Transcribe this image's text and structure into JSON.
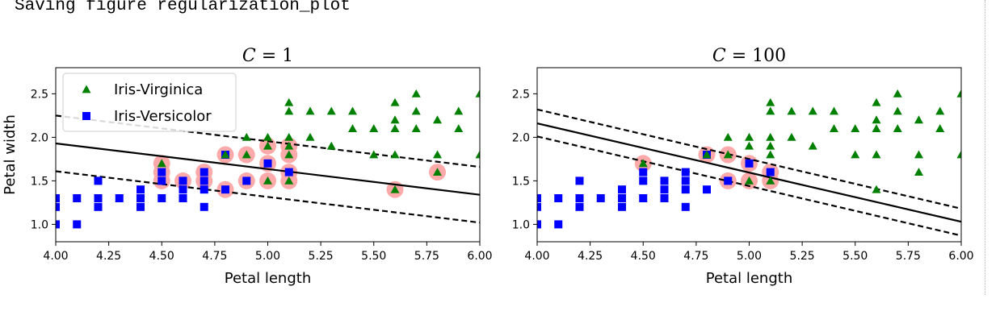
{
  "console": {
    "text": "Saving figure regularization_plot"
  },
  "chart_data": [
    {
      "type": "scatter",
      "title": "C = 1",
      "title_italic": "C",
      "title_rest": " = 1",
      "xlabel": "Petal length",
      "ylabel": "Petal width",
      "xlim": [
        4.0,
        6.0
      ],
      "ylim": [
        0.8,
        2.8
      ],
      "xticks": [
        "4.00",
        "4.25",
        "4.50",
        "4.75",
        "5.00",
        "5.25",
        "5.50",
        "5.75",
        "6.00"
      ],
      "yticks": [
        "1.0",
        "1.5",
        "2.0",
        "2.5"
      ],
      "legend": {
        "placement": "upper-left",
        "entries": [
          "Iris-Virginica",
          "Iris-Versicolor"
        ]
      },
      "decision_line": [
        [
          4.0,
          1.93
        ],
        [
          6.0,
          1.34
        ]
      ],
      "margin_upper": [
        [
          4.0,
          2.25
        ],
        [
          6.0,
          1.66
        ]
      ],
      "margin_lower": [
        [
          4.0,
          1.61
        ],
        [
          6.0,
          1.02
        ]
      ],
      "support_vectors": [
        [
          4.5,
          1.7
        ],
        [
          4.5,
          1.6
        ],
        [
          4.5,
          1.5
        ],
        [
          4.6,
          1.5
        ],
        [
          4.7,
          1.6
        ],
        [
          4.7,
          1.5
        ],
        [
          4.8,
          1.8
        ],
        [
          4.8,
          1.4
        ],
        [
          4.9,
          1.8
        ],
        [
          4.9,
          1.5
        ],
        [
          5.0,
          1.9
        ],
        [
          5.0,
          1.7
        ],
        [
          5.0,
          1.5
        ],
        [
          5.1,
          1.9
        ],
        [
          5.1,
          1.8
        ],
        [
          5.1,
          1.6
        ],
        [
          5.1,
          1.5
        ],
        [
          5.6,
          1.4
        ],
        [
          5.8,
          1.6
        ]
      ]
    },
    {
      "type": "scatter",
      "title": "C = 100",
      "title_italic": "C",
      "title_rest": " = 100",
      "xlabel": "Petal length",
      "ylabel": "",
      "xlim": [
        4.0,
        6.0
      ],
      "ylim": [
        0.8,
        2.8
      ],
      "xticks": [
        "4.00",
        "4.25",
        "4.50",
        "4.75",
        "5.00",
        "5.25",
        "5.50",
        "5.75",
        "6.00"
      ],
      "yticks": [
        "1.0",
        "1.5",
        "2.0",
        "2.5"
      ],
      "decision_line": [
        [
          4.0,
          2.16
        ],
        [
          6.0,
          1.03
        ]
      ],
      "margin_upper": [
        [
          4.0,
          2.32
        ],
        [
          6.0,
          1.18
        ]
      ],
      "margin_lower": [
        [
          4.0,
          2.01
        ],
        [
          6.0,
          0.87
        ]
      ],
      "support_vectors": [
        [
          4.5,
          1.7
        ],
        [
          4.8,
          1.8
        ],
        [
          4.9,
          1.8
        ],
        [
          4.9,
          1.5
        ],
        [
          5.0,
          1.7
        ],
        [
          5.0,
          1.5
        ],
        [
          5.1,
          1.6
        ],
        [
          5.1,
          1.5
        ]
      ]
    }
  ],
  "series": {
    "virginica": {
      "name": "Iris-Virginica",
      "color": "#008000",
      "marker": "triangle",
      "points": [
        [
          4.5,
          1.7
        ],
        [
          4.8,
          1.8
        ],
        [
          4.9,
          1.8
        ],
        [
          4.9,
          2.0
        ],
        [
          5.0,
          1.9
        ],
        [
          5.0,
          1.5
        ],
        [
          5.0,
          2.0
        ],
        [
          5.1,
          2.4
        ],
        [
          5.1,
          2.3
        ],
        [
          5.1,
          2.0
        ],
        [
          5.1,
          1.9
        ],
        [
          5.1,
          1.8
        ],
        [
          5.1,
          1.5
        ],
        [
          5.2,
          2.3
        ],
        [
          5.2,
          2.0
        ],
        [
          5.3,
          2.3
        ],
        [
          5.3,
          1.9
        ],
        [
          5.4,
          2.3
        ],
        [
          5.4,
          2.1
        ],
        [
          5.5,
          2.1
        ],
        [
          5.5,
          1.8
        ],
        [
          5.6,
          2.4
        ],
        [
          5.6,
          2.2
        ],
        [
          5.6,
          2.1
        ],
        [
          5.6,
          1.8
        ],
        [
          5.6,
          1.4
        ],
        [
          5.7,
          2.5
        ],
        [
          5.7,
          2.3
        ],
        [
          5.7,
          2.1
        ],
        [
          5.8,
          2.2
        ],
        [
          5.8,
          1.8
        ],
        [
          5.8,
          1.6
        ],
        [
          5.9,
          2.3
        ],
        [
          5.9,
          2.1
        ],
        [
          6.0,
          2.5
        ],
        [
          6.0,
          1.8
        ]
      ]
    },
    "versicolor": {
      "name": "Iris-Versicolor",
      "color": "#0000ff",
      "marker": "square",
      "points": [
        [
          4.0,
          1.3
        ],
        [
          4.0,
          1.2
        ],
        [
          4.0,
          1.0
        ],
        [
          4.1,
          1.3
        ],
        [
          4.1,
          1.0
        ],
        [
          4.2,
          1.5
        ],
        [
          4.2,
          1.3
        ],
        [
          4.2,
          1.2
        ],
        [
          4.3,
          1.3
        ],
        [
          4.4,
          1.4
        ],
        [
          4.4,
          1.3
        ],
        [
          4.4,
          1.2
        ],
        [
          4.5,
          1.6
        ],
        [
          4.5,
          1.5
        ],
        [
          4.5,
          1.3
        ],
        [
          4.6,
          1.5
        ],
        [
          4.6,
          1.4
        ],
        [
          4.6,
          1.3
        ],
        [
          4.7,
          1.6
        ],
        [
          4.7,
          1.5
        ],
        [
          4.7,
          1.4
        ],
        [
          4.7,
          1.2
        ],
        [
          4.8,
          1.8
        ],
        [
          4.8,
          1.4
        ],
        [
          4.9,
          1.5
        ],
        [
          5.0,
          1.7
        ],
        [
          5.1,
          1.6
        ]
      ]
    }
  },
  "colors": {
    "support_vector": "#ffaaaa",
    "line": "#000000",
    "axes": "#000000"
  }
}
